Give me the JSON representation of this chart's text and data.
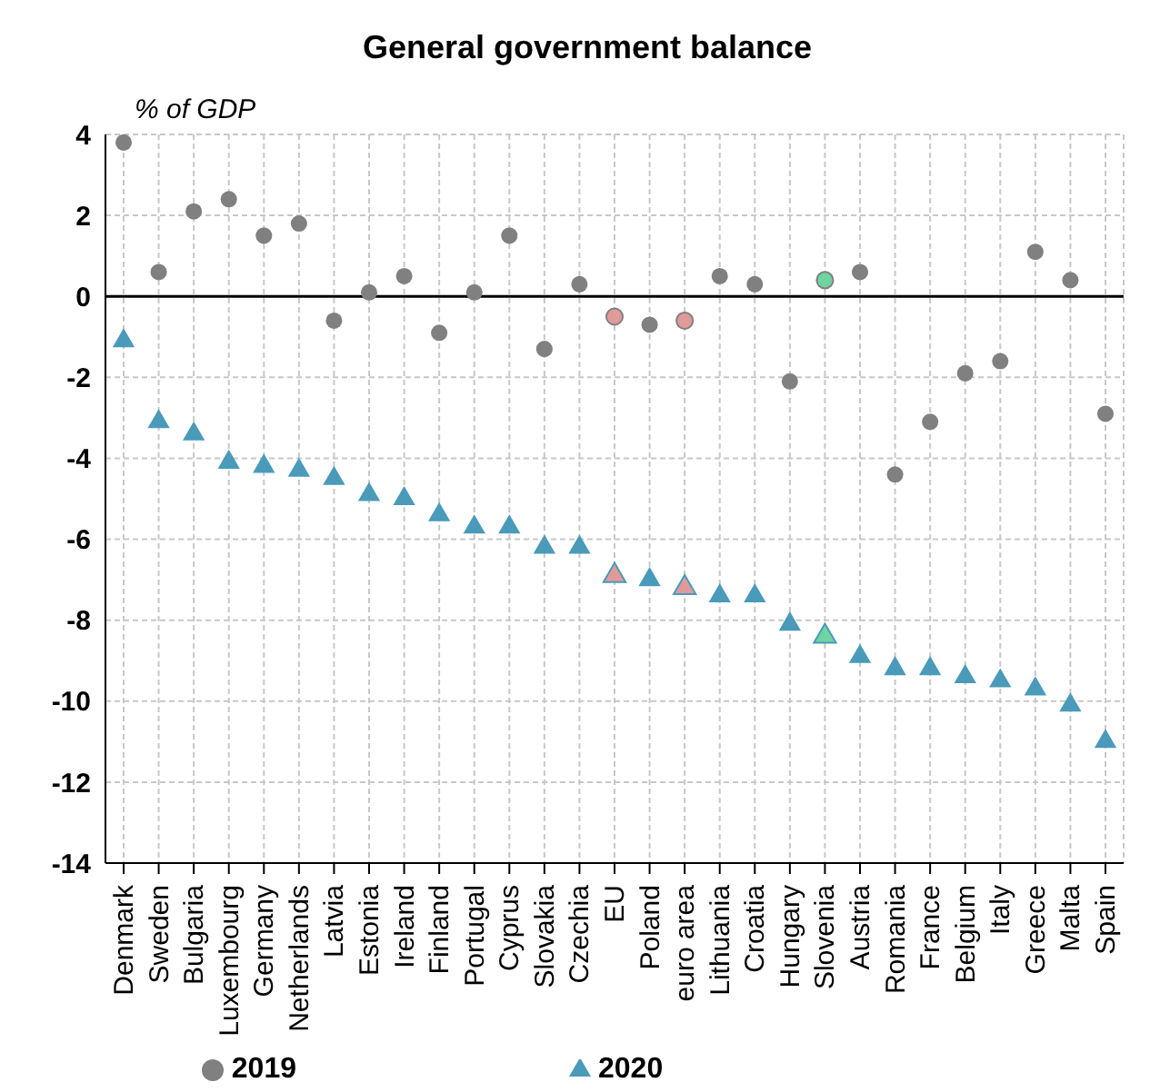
{
  "chart_data": {
    "type": "scatter",
    "title": "General government balance",
    "ylabel": "% of GDP",
    "categories": [
      "Denmark",
      "Sweden",
      "Bulgaria",
      "Luxembourg",
      "Germany",
      "Netherlands",
      "Latvia",
      "Estonia",
      "Ireland",
      "Finland",
      "Portugal",
      "Cyprus",
      "Slovakia",
      "Czechia",
      "EU",
      "Poland",
      "euro area",
      "Lithuania",
      "Croatia",
      "Hungary",
      "Slovenia",
      "Austria",
      "Romania",
      "France",
      "Belgium",
      "Italy",
      "Greece",
      "Malta",
      "Spain"
    ],
    "series": [
      {
        "name": "2019",
        "color": "#808080",
        "marker": "circle",
        "values": [
          3.8,
          0.6,
          2.1,
          2.4,
          1.5,
          1.8,
          -0.6,
          0.1,
          0.5,
          -0.9,
          0.1,
          1.5,
          -1.3,
          0.3,
          -0.5,
          -0.7,
          -0.6,
          0.5,
          0.3,
          -2.1,
          0.4,
          0.6,
          -4.4,
          -3.1,
          -1.9,
          -1.6,
          1.1,
          0.4,
          -2.9
        ],
        "colors": [
          "#808080",
          "#808080",
          "#808080",
          "#808080",
          "#808080",
          "#808080",
          "#808080",
          "#808080",
          "#808080",
          "#808080",
          "#808080",
          "#808080",
          "#808080",
          "#808080",
          "#e09a9a",
          "#808080",
          "#e09a9a",
          "#808080",
          "#808080",
          "#808080",
          "#6fd4a0",
          "#808080",
          "#808080",
          "#808080",
          "#808080",
          "#808080",
          "#808080",
          "#808080",
          "#808080"
        ]
      },
      {
        "name": "2020",
        "color": "#4a9aba",
        "marker": "triangle",
        "values": [
          -1.1,
          -3.1,
          -3.4,
          -4.1,
          -4.2,
          -4.3,
          -4.5,
          -4.9,
          -5.0,
          -5.4,
          -5.7,
          -5.7,
          -6.2,
          -6.2,
          -6.9,
          -7.0,
          -7.2,
          -7.4,
          -7.4,
          -8.1,
          -8.4,
          -8.9,
          -9.2,
          -9.2,
          -9.4,
          -9.5,
          -9.7,
          -10.1,
          -11.0
        ],
        "colors": [
          "#4a9aba",
          "#4a9aba",
          "#4a9aba",
          "#4a9aba",
          "#4a9aba",
          "#4a9aba",
          "#4a9aba",
          "#4a9aba",
          "#4a9aba",
          "#4a9aba",
          "#4a9aba",
          "#4a9aba",
          "#4a9aba",
          "#4a9aba",
          "#e09a9a",
          "#4a9aba",
          "#e09a9a",
          "#4a9aba",
          "#4a9aba",
          "#4a9aba",
          "#6fd4a0",
          "#4a9aba",
          "#4a9aba",
          "#4a9aba",
          "#4a9aba",
          "#4a9aba",
          "#4a9aba",
          "#4a9aba",
          "#4a9aba"
        ]
      }
    ],
    "ylim": [
      -14,
      4
    ],
    "yticks": [
      -14,
      -12,
      -10,
      -8,
      -6,
      -4,
      -2,
      0,
      2,
      4
    ],
    "grid": true,
    "legend": "bottom",
    "ref_lines": [
      {
        "axis": "y",
        "value": 0,
        "color": "#000000"
      }
    ]
  }
}
